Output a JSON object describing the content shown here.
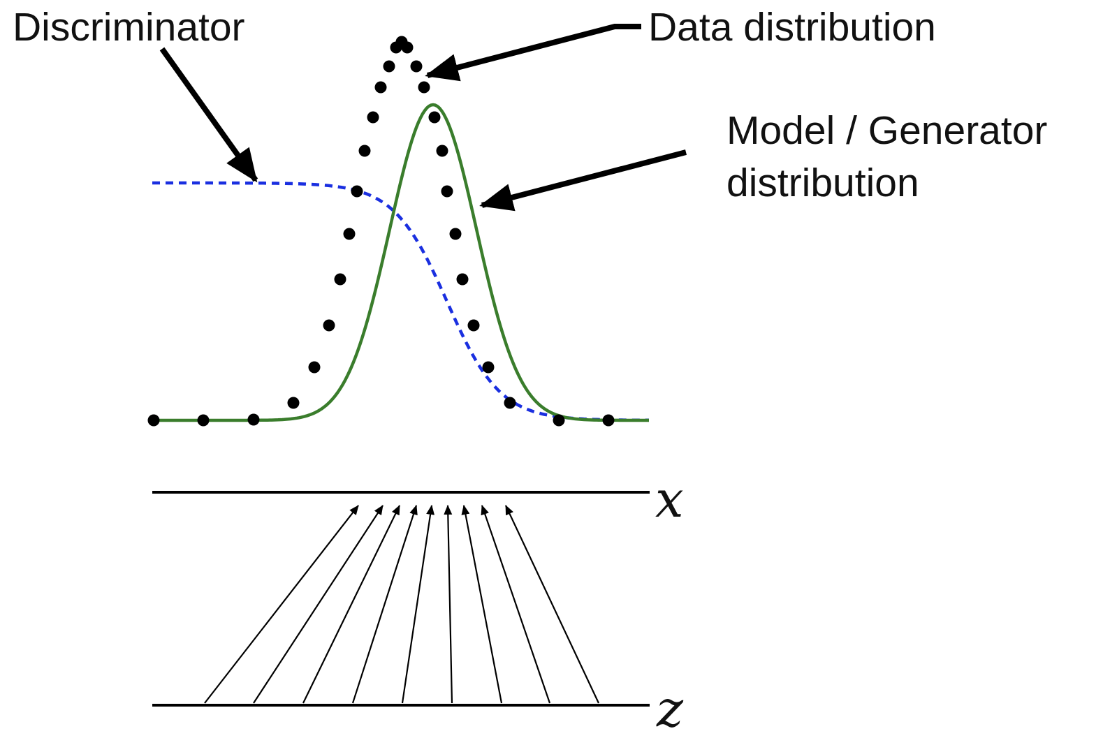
{
  "labels": {
    "discriminator": "Discriminator",
    "data_distribution": "Data distribution",
    "model_line1": "Model / Generator",
    "model_line2": "distribution",
    "x_axis": "x",
    "z_axis": "z"
  },
  "colors": {
    "data_dots": "#000000",
    "model_curve": "#3a7d2c",
    "discriminator_curve": "#1a2fe0",
    "axis_lines": "#000000",
    "annotation_arrows": "#000000",
    "mapping_arrows": "#000000"
  }
}
